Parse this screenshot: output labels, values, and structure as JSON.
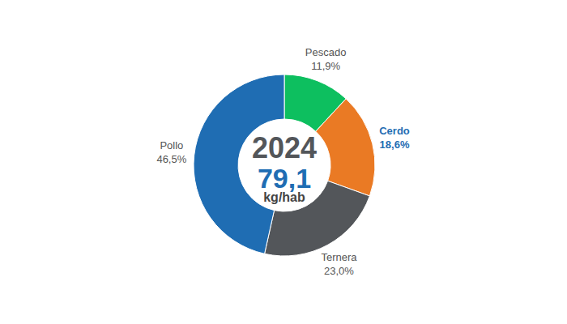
{
  "chart_data": {
    "type": "pie",
    "title": "2024",
    "subtitle": "79,1",
    "unit": "kg/hab",
    "categories": [
      "Pescado",
      "Cerdo",
      "Ternera",
      "Pollo"
    ],
    "values": [
      11.9,
      18.6,
      23.0,
      46.5
    ],
    "value_labels": [
      "11,9%",
      "18,6%",
      "23,0%",
      "46,5%"
    ],
    "colors": [
      "#0dbf5f",
      "#ea7a24",
      "#53565a",
      "#1f6db3"
    ],
    "data_labels": true
  }
}
